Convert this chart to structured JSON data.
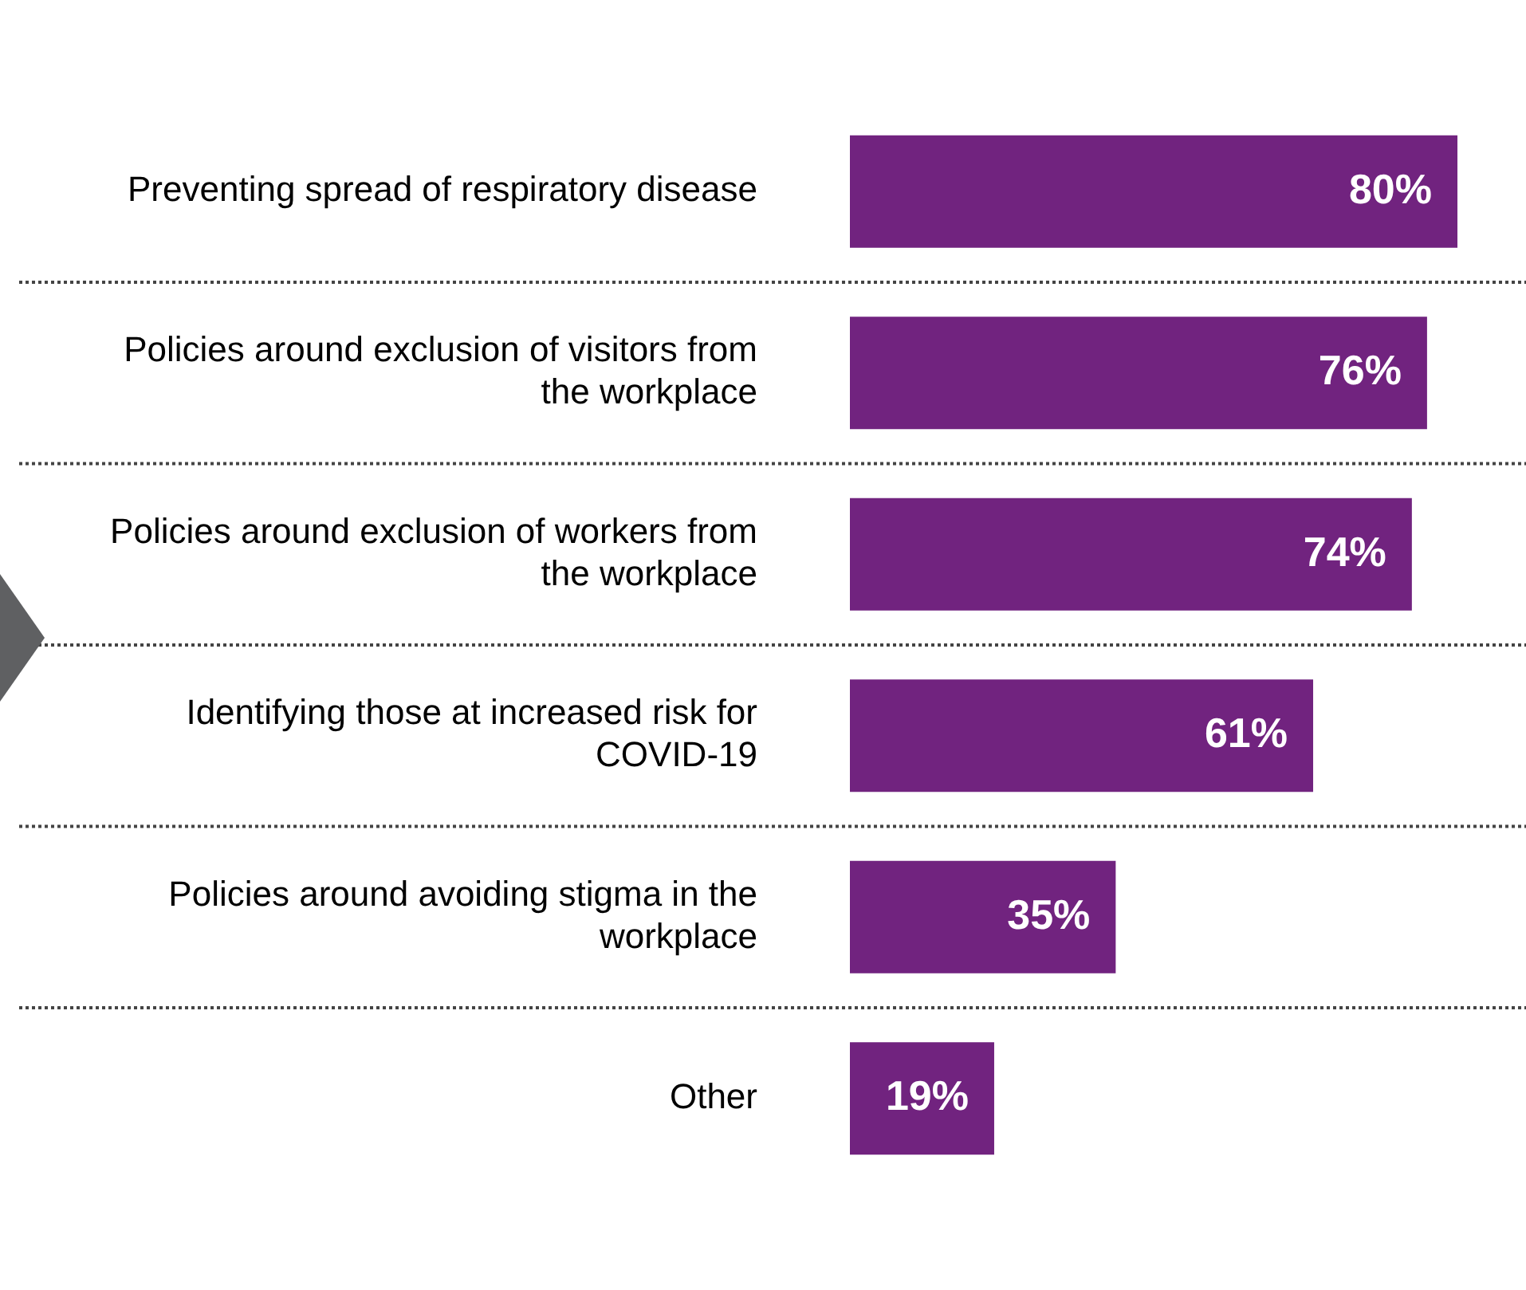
{
  "chart_data": {
    "type": "bar",
    "orientation": "horizontal",
    "categories": [
      "Preventing spread of respiratory disease",
      "Policies around exclusion of visitors from the workplace",
      "Policies around exclusion of workers from the workplace",
      "Identifying those at increased risk for COVID-19",
      "Policies around avoiding stigma in the workplace",
      "Other"
    ],
    "values": [
      80,
      76,
      74,
      61,
      35,
      19
    ],
    "value_labels": [
      "80%",
      "76%",
      "74%",
      "61%",
      "35%",
      "19%"
    ],
    "color": "#71237f",
    "grid": "y",
    "legend": false
  }
}
